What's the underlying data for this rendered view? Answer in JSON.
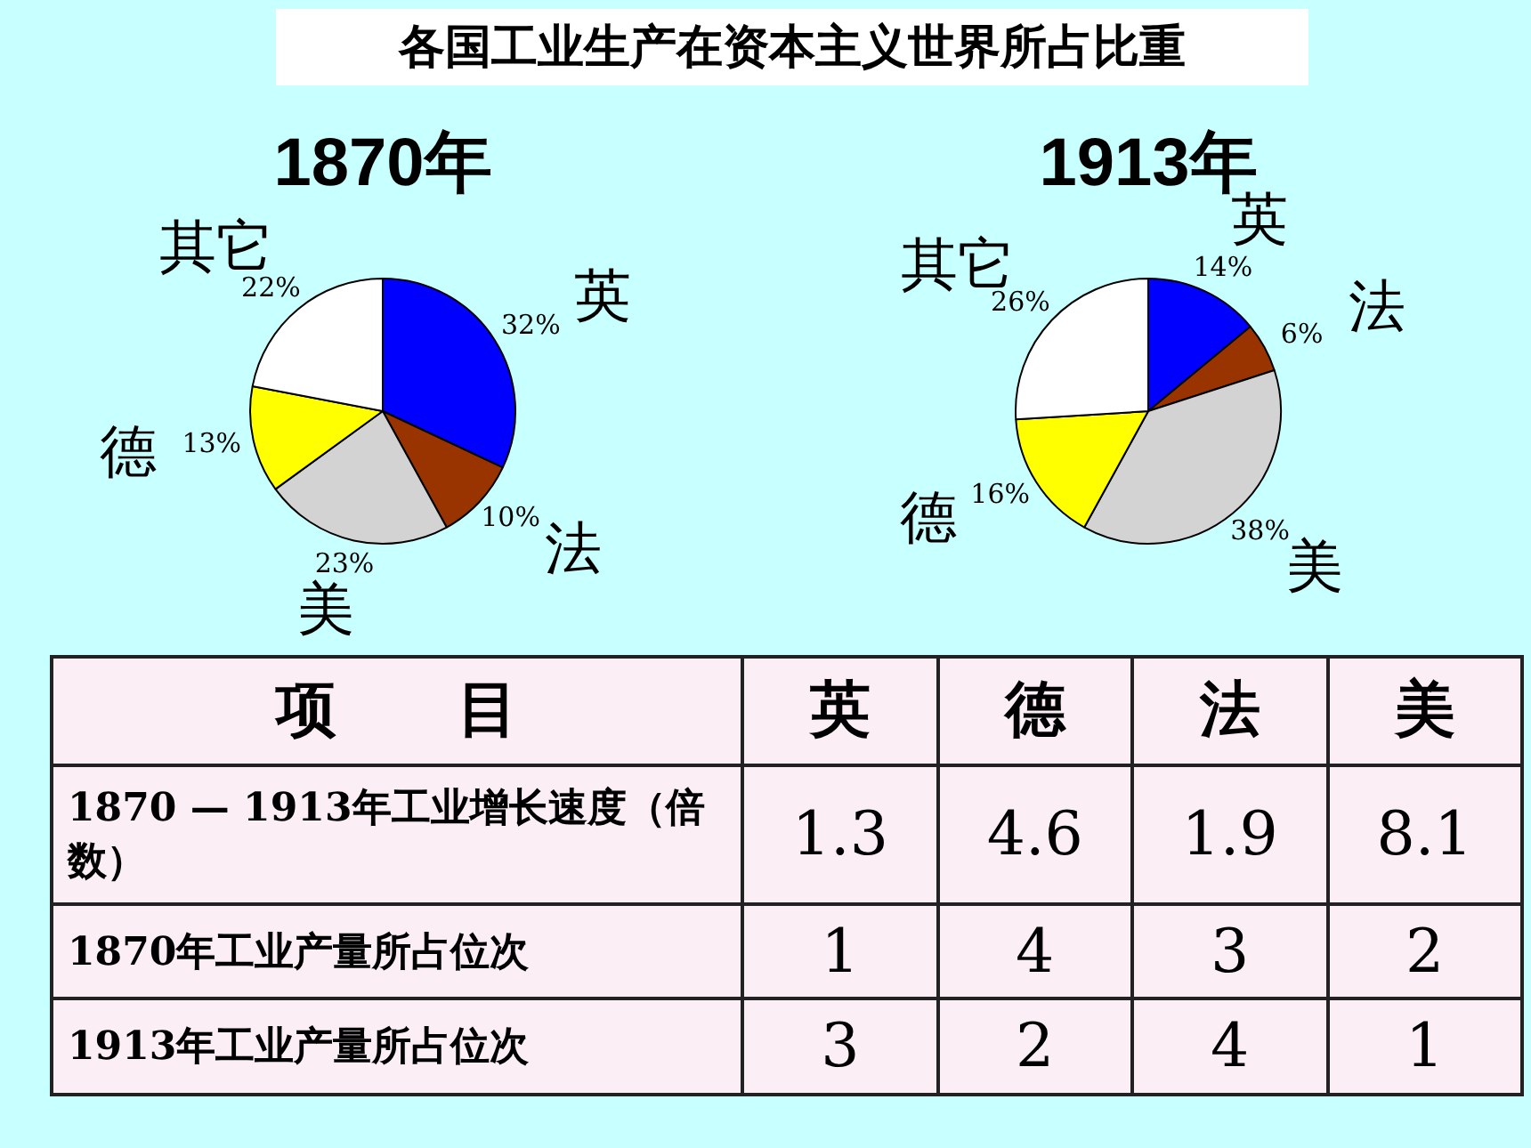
{
  "chart_data": [
    {
      "type": "other",
      "title": "各国工业生产在资本主义世界所占比重"
    },
    {
      "type": "pie",
      "title": "1870年",
      "categories": [
        "英",
        "法",
        "美",
        "德",
        "其它"
      ],
      "values": [
        32,
        10,
        23,
        13,
        22
      ],
      "value_labels": [
        "32%",
        "10%",
        "23%",
        "13%",
        "22%"
      ],
      "colors": [
        "#0000ff",
        "#993300",
        "#d3d3d3",
        "#ffff00",
        "#ffffff"
      ]
    },
    {
      "type": "pie",
      "title": "1913年",
      "categories": [
        "英",
        "法",
        "美",
        "德",
        "其它"
      ],
      "values": [
        14,
        6,
        38,
        16,
        26
      ],
      "value_labels": [
        "14%",
        "6%",
        "38%",
        "16%",
        "26%"
      ],
      "colors": [
        "#0000ff",
        "#993300",
        "#d3d3d3",
        "#ffff00",
        "#ffffff"
      ]
    },
    {
      "type": "other",
      "xlabel": "项　　目",
      "categories": [
        "英",
        "德",
        "法",
        "美"
      ],
      "data_labels": true,
      "series": [
        {
          "name": "1870 — 1913年工业增长速度（倍数）",
          "values": [
            1.3,
            4.6,
            1.9,
            8.1
          ]
        },
        {
          "name": "1870年工业产量所占位次",
          "values": [
            1,
            4,
            3,
            2
          ]
        },
        {
          "name": "1913年工业产量所占位次",
          "values": [
            3,
            2,
            4,
            1
          ]
        }
      ]
    }
  ]
}
